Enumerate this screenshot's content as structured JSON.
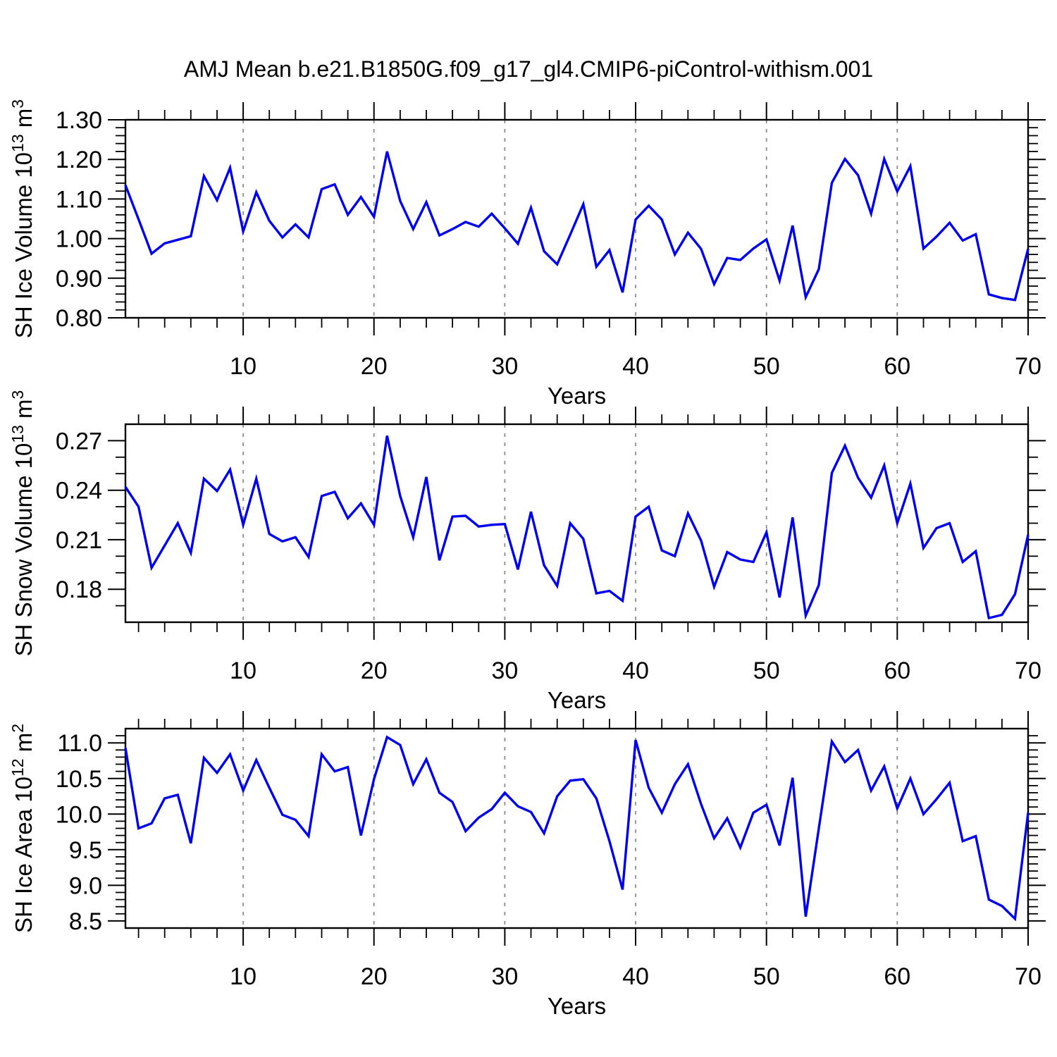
{
  "title": "AMJ Mean b.e21.B1850G.f09_g17_gl4.CMIP6-piControl-withism.001",
  "colors": {
    "line": "#0000ee",
    "grid": "#808080",
    "axis": "#000000",
    "text": "#000000",
    "background": "#ffffff"
  },
  "x_axis": {
    "label": "Years",
    "range": [
      1,
      70
    ],
    "major_ticks": [
      10,
      20,
      30,
      40,
      50,
      60,
      70
    ],
    "major_tick_labels": [
      "10",
      "20",
      "30",
      "40",
      "50",
      "60",
      "70"
    ],
    "minor_step": 2,
    "gridlines": [
      10,
      20,
      30,
      40,
      50,
      60
    ],
    "grid_style": "dashed"
  },
  "chart_data": [
    {
      "type": "line",
      "name": "sh-ice-volume",
      "ylabel": {
        "text": "SH Ice Volume 10",
        "exp": "13",
        "unit": " m",
        "unit_exp": "3"
      },
      "ylim": [
        0.8,
        1.3
      ],
      "yticks": [
        0.8,
        0.9,
        1.0,
        1.1,
        1.2,
        1.3
      ],
      "ytick_labels": [
        "0.80",
        "0.90",
        "1.00",
        "1.10",
        "1.20",
        "1.30"
      ],
      "y_minor_step": 0.02,
      "x": {
        "start": 1,
        "end": 70,
        "step": 1
      },
      "values": [
        1.135,
        1.049,
        0.962,
        0.988,
        0.997,
        1.006,
        1.158,
        1.097,
        1.179,
        1.018,
        1.117,
        1.045,
        1.003,
        1.036,
        1.003,
        1.125,
        1.137,
        1.06,
        1.105,
        1.055,
        1.22,
        1.095,
        1.024,
        1.092,
        1.008,
        1.024,
        1.042,
        1.03,
        1.063,
        1.026,
        0.987,
        1.078,
        0.968,
        0.935,
        1.01,
        1.087,
        0.929,
        0.971,
        0.864,
        1.048,
        1.083,
        1.048,
        0.96,
        1.015,
        0.974,
        0.885,
        0.951,
        0.946,
        0.975,
        0.998,
        0.894,
        1.033,
        0.852,
        0.923,
        1.141,
        1.201,
        1.16,
        1.063,
        1.201,
        1.119,
        1.183,
        0.975,
        1.005,
        1.04,
        0.995,
        1.011,
        0.859,
        0.85,
        0.845,
        0.974
      ]
    },
    {
      "type": "line",
      "name": "sh-snow-volume",
      "ylabel": {
        "text": "SH Snow Volume 10",
        "exp": "13",
        "unit": " m",
        "unit_exp": "3"
      },
      "ylim": [
        0.16,
        0.28
      ],
      "yticks": [
        0.18,
        0.21,
        0.24,
        0.27
      ],
      "ytick_labels": [
        "0.18",
        "0.21",
        "0.24",
        "0.27"
      ],
      "y_minor_step": 0.01,
      "x": {
        "start": 1,
        "end": 70,
        "step": 1
      },
      "values": [
        0.242,
        0.23,
        0.193,
        0.2065,
        0.22,
        0.202,
        0.247,
        0.2395,
        0.2525,
        0.219,
        0.247,
        0.2135,
        0.209,
        0.2115,
        0.1995,
        0.2365,
        0.239,
        0.223,
        0.232,
        0.219,
        0.273,
        0.2365,
        0.2115,
        0.248,
        0.1975,
        0.224,
        0.2245,
        0.218,
        0.219,
        0.2195,
        0.192,
        0.227,
        0.1945,
        0.182,
        0.22,
        0.2105,
        0.1775,
        0.179,
        0.173,
        0.224,
        0.23,
        0.2035,
        0.2,
        0.226,
        0.2095,
        0.1815,
        0.2025,
        0.198,
        0.1965,
        0.2145,
        0.175,
        0.2235,
        0.164,
        0.1825,
        0.2505,
        0.267,
        0.2475,
        0.2355,
        0.255,
        0.22,
        0.244,
        0.205,
        0.217,
        0.22,
        0.1965,
        0.203,
        0.1625,
        0.1645,
        0.177,
        0.213
      ]
    },
    {
      "type": "line",
      "name": "sh-ice-area",
      "ylabel": {
        "text": "SH Ice Area 10",
        "exp": "12",
        "unit": " m",
        "unit_exp": "2"
      },
      "ylim": [
        8.4,
        11.2
      ],
      "yticks": [
        8.5,
        9.0,
        9.5,
        10.0,
        10.5,
        11.0
      ],
      "ytick_labels": [
        "8.5",
        "9.0",
        "9.5",
        "10.0",
        "10.5",
        "11.0"
      ],
      "y_minor_step": 0.1,
      "x": {
        "start": 1,
        "end": 70,
        "step": 1
      },
      "values": [
        10.93,
        9.8,
        9.87,
        10.22,
        10.27,
        9.59,
        10.79,
        10.58,
        10.84,
        10.33,
        10.76,
        10.37,
        9.99,
        9.92,
        9.69,
        10.84,
        10.6,
        10.66,
        9.7,
        10.49,
        11.08,
        10.97,
        10.42,
        10.77,
        10.3,
        10.17,
        9.76,
        9.95,
        10.07,
        10.3,
        10.11,
        10.03,
        9.73,
        10.25,
        10.47,
        10.49,
        10.22,
        9.62,
        8.94,
        11.04,
        10.37,
        10.02,
        10.42,
        10.7,
        10.14,
        9.66,
        9.94,
        9.53,
        10.02,
        10.13,
        9.56,
        10.51,
        8.56,
        9.8,
        11.02,
        10.73,
        10.9,
        10.33,
        10.67,
        10.08,
        10.5,
        10.0,
        10.21,
        10.44,
        9.62,
        9.69,
        8.8,
        8.71,
        8.53,
        10.02
      ]
    }
  ]
}
